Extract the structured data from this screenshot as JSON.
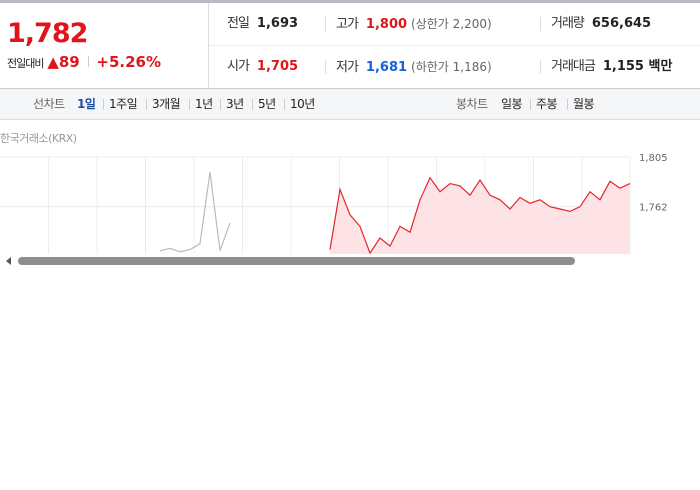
{
  "quote": {
    "price": "1,782",
    "change_label": "전일대비",
    "change": "89",
    "change_rate": "+5.26%"
  },
  "summary": [
    {
      "label": "전일",
      "value": "1,693",
      "color": "#222222"
    },
    {
      "label": "고가",
      "value": "1,800",
      "color": "#e0151c",
      "note": "(상한가 2,200)"
    },
    {
      "label": "거래량",
      "value": "656,645",
      "color": "#222222"
    },
    {
      "label": "시가",
      "value": "1,705",
      "color": "#e0151c"
    },
    {
      "label": "저가",
      "value": "1,681",
      "color": "#1760d6",
      "note": "(하한가 1,186)"
    },
    {
      "label": "거래대금",
      "value": "1,155 백만",
      "color": "#222222"
    }
  ],
  "tabs": {
    "line_label": "선차트",
    "line_periods": [
      "1일",
      "1주일",
      "3개월",
      "1년",
      "3년",
      "5년",
      "10년"
    ],
    "candle_label": "봉차트",
    "candle_periods": [
      "일봉",
      "주봉",
      "월봉"
    ]
  },
  "source": "한국거래소(KRX)",
  "chart_data": {
    "type": "line",
    "ylim": [
      1722,
      1805
    ],
    "yticks": [
      {
        "value": 1805,
        "label": "1,805"
      },
      {
        "value": 1762,
        "label": "1,762"
      }
    ],
    "grid": true,
    "series": [
      {
        "color": "#bbbbbb",
        "values": [
          null,
          null,
          null,
          null,
          null,
          null,
          null,
          null,
          null,
          null,
          null,
          null,
          null,
          null,
          null,
          null,
          1724,
          1726,
          1723,
          1725,
          1730,
          1792,
          1724,
          1748,
          null,
          null,
          null,
          null,
          null,
          null,
          null,
          null,
          null,
          null,
          null,
          null,
          null,
          null,
          null,
          null,
          null,
          null,
          null,
          null,
          null,
          null,
          null,
          null,
          null,
          null,
          null,
          null,
          null,
          null,
          null,
          null,
          null,
          null,
          null,
          null,
          null,
          null,
          null,
          null
        ]
      },
      {
        "color": "#e8232b",
        "area": "#fde3e5",
        "values": [
          null,
          null,
          null,
          null,
          null,
          null,
          null,
          null,
          null,
          null,
          null,
          null,
          null,
          null,
          null,
          null,
          null,
          null,
          null,
          null,
          null,
          null,
          null,
          null,
          null,
          null,
          null,
          null,
          null,
          null,
          null,
          null,
          null,
          1725,
          1777,
          1755,
          1745,
          1722,
          1735,
          1728,
          1745,
          1740,
          1768,
          1787,
          1775,
          1782,
          1780,
          1772,
          1785,
          1772,
          1768,
          1760,
          1770,
          1765,
          1768,
          1762,
          1760,
          1758,
          1762,
          1775,
          1768,
          1784,
          1778,
          1782
        ]
      }
    ]
  }
}
